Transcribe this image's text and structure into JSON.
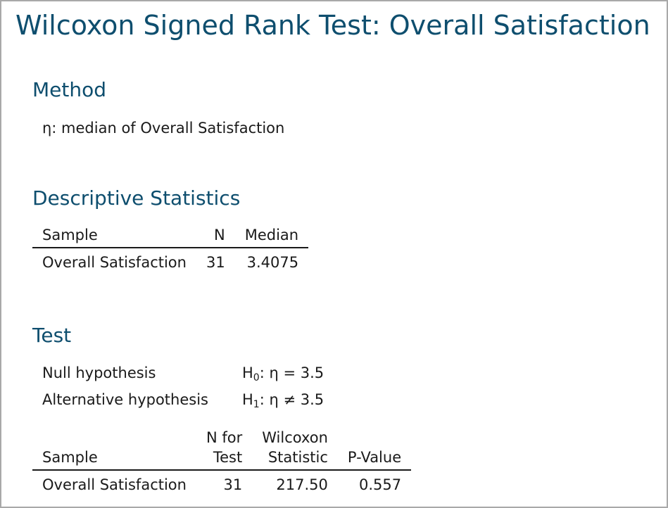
{
  "title": "Wilcoxon Signed Rank Test: Overall Satisfaction",
  "method": {
    "heading": "Method",
    "text": "η: median of Overall Satisfaction"
  },
  "descriptive": {
    "heading": "Descriptive Statistics",
    "headers": {
      "sample": "Sample",
      "n": "N",
      "median": "Median"
    },
    "row": {
      "sample": "Overall Satisfaction",
      "n": "31",
      "median": "3.4075"
    }
  },
  "test": {
    "heading": "Test",
    "null_label": "Null hypothesis",
    "null_h": "H",
    "null_sub": "0",
    "null_rest": ": η = 3.5",
    "alt_label": "Alternative hypothesis",
    "alt_h": "H",
    "alt_sub": "1",
    "alt_rest": ": η ≠ 3.5",
    "headers": {
      "sample": "Sample",
      "n_line1": "N for",
      "n_line2": "Test",
      "stat_line1": "Wilcoxon",
      "stat_line2": "Statistic",
      "pvalue": "P-Value"
    },
    "row": {
      "sample": "Overall Satisfaction",
      "n": "31",
      "stat": "217.50",
      "pvalue": "0.557"
    }
  }
}
